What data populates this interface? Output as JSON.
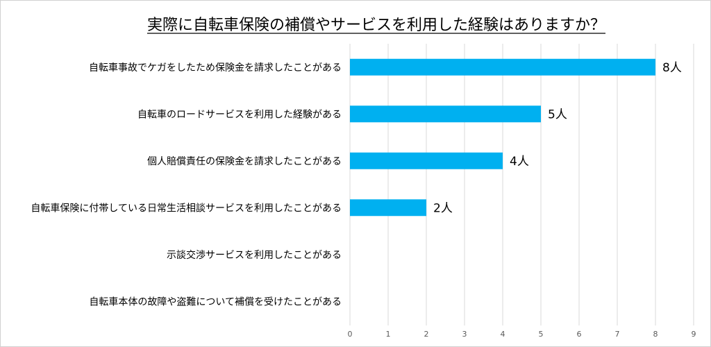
{
  "chart_data": {
    "type": "bar",
    "orientation": "horizontal",
    "title": "実際に自転車保険の補償やサービスを利用した経験はありますか？",
    "categories": [
      "自転車事故でケガをしたため保険金を請求したことがある",
      "自転車のロードサービスを利用した経験がある",
      "個人賠償責任の保険金を請求したことがある",
      "自転車保険に付帯している日常生活相談サービスを利用したことがある",
      "示談交渉サービスを利用したことがある",
      "自転車本体の故障や盗難について補償を受けたことがある"
    ],
    "values": [
      8,
      5,
      4,
      2,
      0,
      0
    ],
    "data_labels": [
      "8人",
      "5人",
      "4人",
      "2人",
      "",
      ""
    ],
    "xlim": [
      0,
      9
    ],
    "xticks": [
      0,
      1,
      2,
      3,
      4,
      5,
      6,
      7,
      8,
      9
    ],
    "xlabel": "",
    "ylabel": "",
    "grid": true,
    "legend": "none",
    "bar_color": "#00b0f0"
  }
}
